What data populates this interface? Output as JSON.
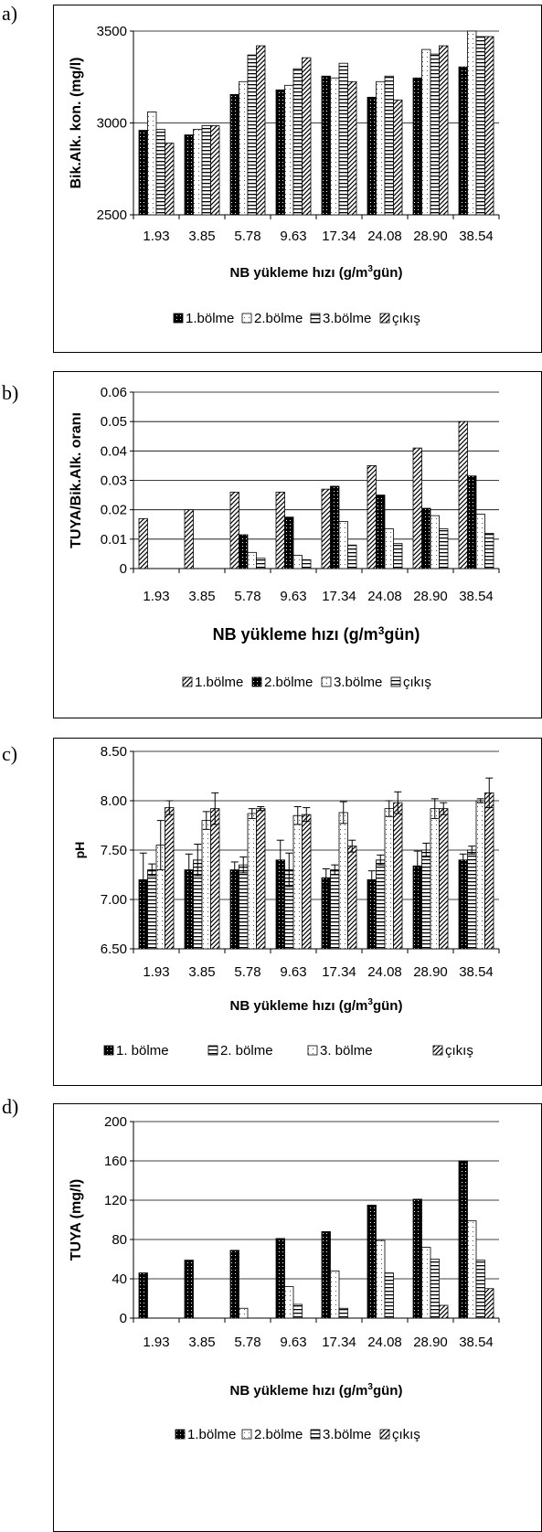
{
  "patterns": {
    "black": {
      "fill": "#000000",
      "dots": true
    },
    "white": {
      "fill": "#ffffff",
      "dots": true
    },
    "hlines": {
      "fill": "#ffffff",
      "hlines": true
    },
    "diag": {
      "fill": "#ffffff",
      "diag": true
    }
  },
  "chart_data": [
    {
      "type": "bar",
      "panel_label": "a)",
      "title": "",
      "categories": [
        "1.93",
        "3.85",
        "5.78",
        "9.63",
        "17.34",
        "24.08",
        "28.90",
        "38.54"
      ],
      "ylabel": "Bik.Alk. kon.  (mg/l)",
      "xlabel_pre": "NB yükleme hızı  (g/m",
      "xlabel_sup": "3",
      "xlabel_post": "gün)",
      "ylim": [
        2500,
        3500
      ],
      "yticks": [
        "2500",
        "3000",
        "3500"
      ],
      "ytick_values": [
        2500,
        3000,
        3500
      ],
      "legend_placement": "bottom",
      "series": [
        {
          "name": "1.bölme",
          "pattern": "black",
          "values": [
            2960,
            2935,
            3155,
            3180,
            3255,
            3140,
            3245,
            3305
          ]
        },
        {
          "name": "2.bölme",
          "pattern": "white",
          "values": [
            3060,
            2965,
            3225,
            3205,
            3245,
            3225,
            3400,
            3500
          ]
        },
        {
          "name": "3.bölme",
          "pattern": "hlines",
          "values": [
            2965,
            2985,
            3370,
            3295,
            3325,
            3255,
            3375,
            3470
          ]
        },
        {
          "name": "çıkış",
          "pattern": "diag",
          "values": [
            2890,
            2985,
            3420,
            3355,
            3225,
            3125,
            3420,
            3470
          ]
        }
      ]
    },
    {
      "type": "bar",
      "panel_label": "b)",
      "title": "",
      "categories": [
        "1.93",
        "3.85",
        "5.78",
        "9.63",
        "17.34",
        "24.08",
        "28.90",
        "38.54"
      ],
      "ylabel": "TUYA/Bik.Alk. oranı",
      "xlabel_pre": "NB yükleme hızı  (g/m",
      "xlabel_sup": "3",
      "xlabel_post": "gün)",
      "ylim": [
        0,
        0.06
      ],
      "yticks": [
        "0",
        "0.01",
        "0.02",
        "0.03",
        "0.04",
        "0.05",
        "0.06"
      ],
      "ytick_values": [
        0,
        0.01,
        0.02,
        0.03,
        0.04,
        0.05,
        0.06
      ],
      "legend_placement": "bottom",
      "series": [
        {
          "name": "1.bölme",
          "pattern": "diag",
          "values": [
            0.017,
            0.02,
            0.026,
            0.026,
            0.027,
            0.035,
            0.041,
            0.05
          ]
        },
        {
          "name": "2.bölme",
          "pattern": "black",
          "values": [
            0,
            0,
            0.0115,
            0.0175,
            0.028,
            0.025,
            0.0205,
            0.0315
          ]
        },
        {
          "name": "3.bölme",
          "pattern": "white",
          "values": [
            0,
            0,
            0.0055,
            0.0045,
            0.016,
            0.0135,
            0.018,
            0.0185
          ]
        },
        {
          "name": "çıkış",
          "pattern": "hlines",
          "values": [
            0,
            0,
            0.0035,
            0.003,
            0.008,
            0.0085,
            0.0135,
            0.012
          ]
        }
      ]
    },
    {
      "type": "bar",
      "panel_label": "c)",
      "title": "",
      "categories": [
        "1.93",
        "3.85",
        "5.78",
        "9.63",
        "17.34",
        "24.08",
        "28.90",
        "38.54"
      ],
      "ylabel": "pH",
      "xlabel_pre": "NB yükleme hızı  (g/m",
      "xlabel_sup": "3",
      "xlabel_post": "gün)",
      "ylim": [
        6.5,
        8.5
      ],
      "yticks": [
        "6.50",
        "7.00",
        "7.50",
        "8.00",
        "8.50"
      ],
      "ytick_values": [
        6.5,
        7.0,
        7.5,
        8.0,
        8.5
      ],
      "legend_placement": "bottom",
      "error_bars": true,
      "series": [
        {
          "name": "1. bölme",
          "pattern": "black",
          "values": [
            7.2,
            7.3,
            7.3,
            7.4,
            7.22,
            7.2,
            7.34,
            7.4
          ],
          "errors": [
            0.27,
            0.16,
            0.08,
            0.2,
            0.09,
            0.09,
            0.15,
            0.06
          ]
        },
        {
          "name": "2. bölme",
          "pattern": "hlines",
          "values": [
            7.3,
            7.4,
            7.35,
            7.3,
            7.3,
            7.4,
            7.5,
            7.5
          ],
          "errors": [
            0.06,
            0.16,
            0.08,
            0.17,
            0.05,
            0.05,
            0.07,
            0.04
          ]
        },
        {
          "name": "3. bölme",
          "pattern": "white",
          "values": [
            7.55,
            7.8,
            7.87,
            7.85,
            7.88,
            7.92,
            7.92,
            8.0
          ],
          "errors": [
            0.25,
            0.09,
            0.05,
            0.09,
            0.11,
            0.08,
            0.1,
            0.02
          ]
        },
        {
          "name": "çıkış",
          "pattern": "diag",
          "values": [
            7.93,
            7.92,
            7.92,
            7.86,
            7.54,
            7.98,
            7.92,
            8.08
          ],
          "errors": [
            0.07,
            0.16,
            0.02,
            0.07,
            0.06,
            0.11,
            0.06,
            0.15
          ]
        }
      ]
    },
    {
      "type": "bar",
      "panel_label": "d)",
      "title": "",
      "categories": [
        "1.93",
        "3.85",
        "5.78",
        "9.63",
        "17.34",
        "24.08",
        "28.90",
        "38.54"
      ],
      "ylabel": "TUYA (mg/l)",
      "xlabel_pre": "NB yükleme hızı  (g/m",
      "xlabel_sup": "3",
      "xlabel_post": "gün)",
      "ylim": [
        0,
        200
      ],
      "yticks": [
        "0",
        "40",
        "80",
        "120",
        "160",
        "200"
      ],
      "ytick_values": [
        0,
        40,
        80,
        120,
        160,
        200
      ],
      "legend_placement": "bottom",
      "series": [
        {
          "name": "1.bölme",
          "pattern": "black",
          "values": [
            46,
            59,
            69,
            81,
            88,
            115,
            121,
            160
          ]
        },
        {
          "name": "2.bölme",
          "pattern": "white",
          "values": [
            0,
            0,
            10,
            32,
            48,
            79,
            72,
            99
          ]
        },
        {
          "name": "3.bölme",
          "pattern": "hlines",
          "values": [
            0,
            0,
            0,
            14,
            10,
            46,
            60,
            59
          ]
        },
        {
          "name": "çıkış",
          "pattern": "diag",
          "values": [
            0,
            0,
            0,
            0,
            0,
            0,
            13,
            30
          ]
        }
      ]
    }
  ]
}
